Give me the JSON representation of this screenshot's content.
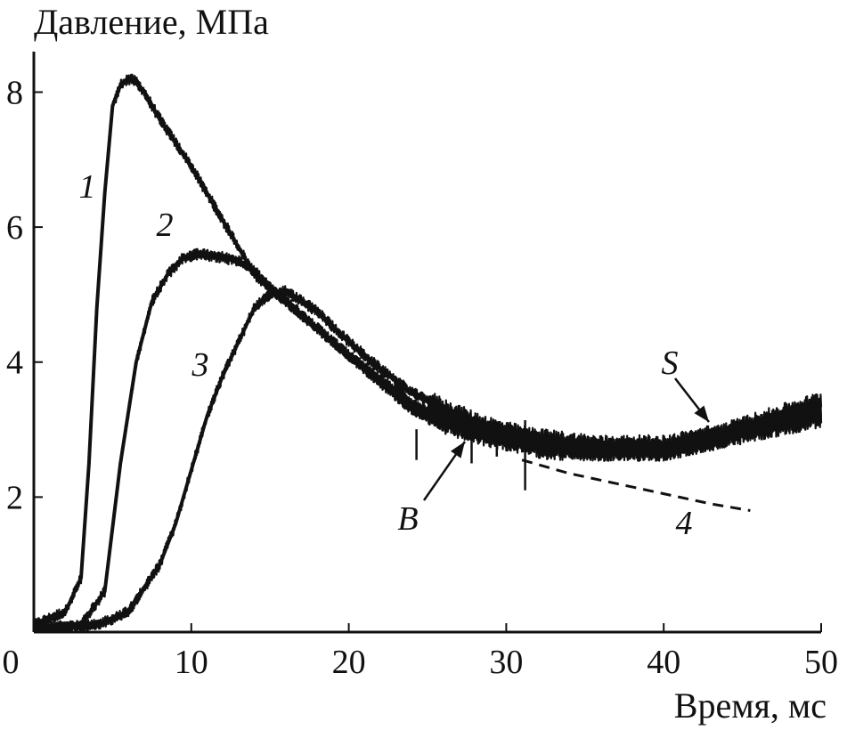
{
  "chart_data": {
    "type": "line",
    "ylabel": "Давление, МПа",
    "xlabel": "Время, мс",
    "xlim": [
      0,
      50
    ],
    "ylim": [
      0,
      8.6
    ],
    "grid": false,
    "x_ticks": [
      "0",
      "10",
      "20",
      "30",
      "40",
      "50"
    ],
    "x_tick_values": [
      0,
      10,
      20,
      30,
      40,
      50
    ],
    "y_ticks": [
      "2",
      "4",
      "6",
      "8"
    ],
    "y_tick_values": [
      2,
      4,
      6,
      8
    ],
    "colors": {
      "ink": "#111111",
      "background": "#ffffff"
    },
    "series": [
      {
        "label": "1",
        "style": "noisy",
        "x": [
          0,
          2,
          3,
          3.5,
          4,
          4.5,
          5,
          5.5,
          6,
          6.5,
          7,
          8,
          10,
          12,
          13,
          14,
          16,
          18,
          20,
          22,
          24,
          26,
          28,
          30,
          32,
          34,
          36,
          38,
          40,
          42,
          44,
          46,
          48,
          50
        ],
        "y": [
          0.1,
          0.3,
          0.8,
          2.5,
          4.8,
          6.5,
          7.8,
          8.1,
          8.2,
          8.15,
          8.0,
          7.6,
          6.9,
          6.1,
          5.7,
          5.3,
          4.9,
          4.5,
          4.1,
          3.7,
          3.3,
          3.1,
          2.95,
          2.85,
          2.75,
          2.7,
          2.7,
          2.7,
          2.7,
          2.8,
          2.9,
          3.05,
          3.15,
          3.25
        ]
      },
      {
        "label": "2",
        "style": "noisy",
        "x": [
          0,
          3,
          4.5,
          5.5,
          6.5,
          7.5,
          8.5,
          9.5,
          10.5,
          12,
          13,
          14,
          15,
          16,
          18,
          20,
          22,
          24,
          26,
          28,
          30,
          32,
          34,
          36,
          38,
          40,
          42,
          44,
          46,
          48,
          50
        ],
        "y": [
          0.05,
          0.1,
          0.6,
          2.5,
          4.0,
          4.9,
          5.3,
          5.55,
          5.6,
          5.55,
          5.5,
          5.35,
          5.1,
          4.9,
          4.5,
          4.1,
          3.75,
          3.4,
          3.15,
          3.0,
          2.9,
          2.8,
          2.75,
          2.7,
          2.7,
          2.7,
          2.8,
          2.9,
          3.0,
          3.1,
          3.2
        ]
      },
      {
        "label": "3",
        "style": "noisy",
        "x": [
          0,
          4,
          6,
          8,
          9,
          10,
          11,
          12,
          13,
          14,
          15,
          16,
          18,
          20,
          22,
          24,
          26,
          28,
          30,
          32,
          34,
          36,
          38,
          40,
          42,
          44,
          46,
          48,
          50
        ],
        "y": [
          0.05,
          0.1,
          0.3,
          1.0,
          1.6,
          2.4,
          3.2,
          3.8,
          4.3,
          4.8,
          5.0,
          5.05,
          4.75,
          4.3,
          3.9,
          3.55,
          3.3,
          3.1,
          2.95,
          2.85,
          2.8,
          2.75,
          2.75,
          2.75,
          2.85,
          2.95,
          3.1,
          3.25,
          3.4
        ]
      },
      {
        "label": "4",
        "style": "dashed",
        "x": [
          31,
          34,
          37,
          40,
          43,
          45.5
        ],
        "y": [
          2.55,
          2.35,
          2.2,
          2.05,
          1.9,
          1.8
        ]
      }
    ],
    "annotations": [
      {
        "text": "B",
        "x": 23.8,
        "y": 1.6,
        "arrow_to": [
          27.2,
          2.8
        ]
      },
      {
        "text": "S",
        "x": 40.4,
        "y": 4.0,
        "arrow_to": [
          43.0,
          3.1
        ]
      }
    ]
  }
}
